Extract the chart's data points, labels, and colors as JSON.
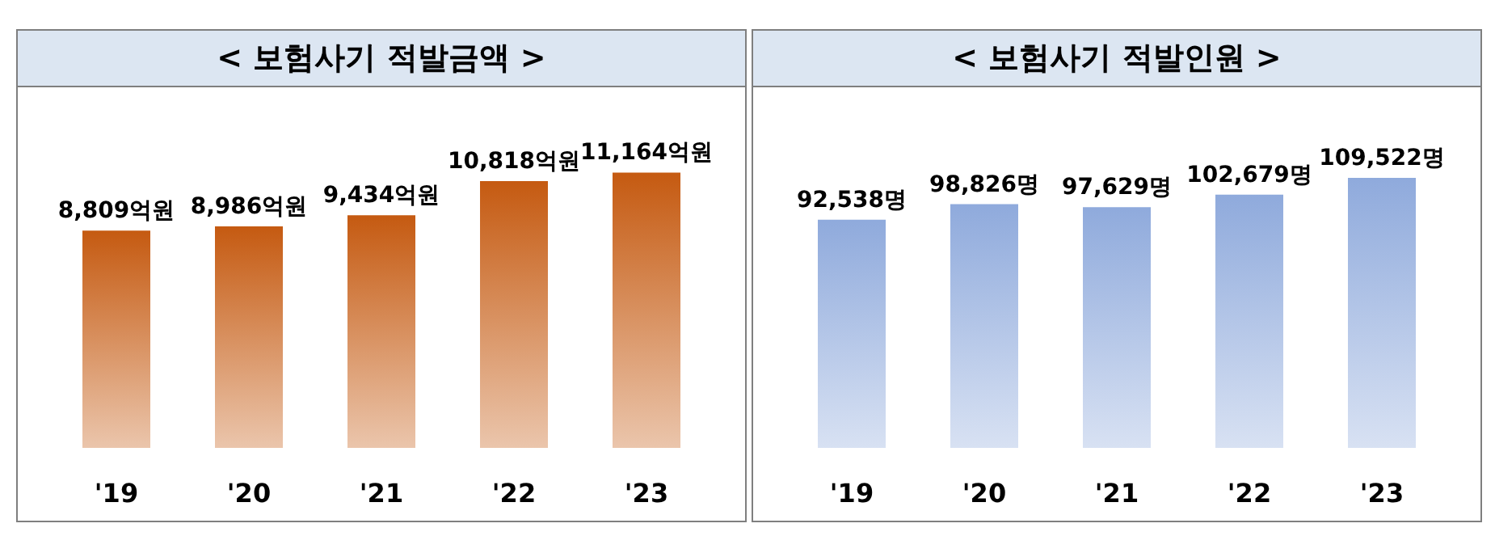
{
  "chart_data": [
    {
      "type": "bar",
      "title": "< 보험사기 적발금액 >",
      "categories": [
        "'19",
        "'20",
        "'21",
        "'22",
        "'23"
      ],
      "values": [
        8809,
        8986,
        9434,
        10818,
        11164
      ],
      "color": "#c55a11",
      "value_labels": [
        "8,809억원",
        "8,986억원",
        "9,434억원",
        "10,818억원",
        "11,164억원"
      ]
    },
    {
      "type": "bar",
      "title": "< 보험사기 적발인원 >",
      "categories": [
        "'19",
        "'20",
        "'21",
        "'22",
        "'23"
      ],
      "values": [
        92538,
        98826,
        97629,
        102679,
        109522
      ],
      "color": "#8faadc",
      "value_labels": [
        "92,538명",
        "98,826명",
        "97,629명",
        "102,679명",
        "109,522명"
      ]
    }
  ]
}
